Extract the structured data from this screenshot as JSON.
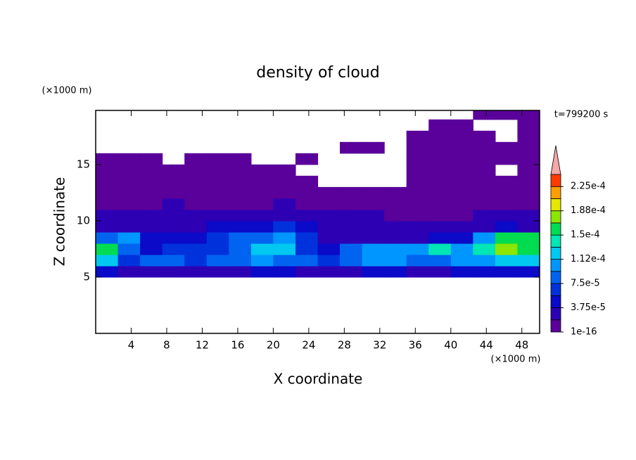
{
  "chart_data": {
    "type": "contour",
    "title": "density of cloud",
    "annotation": "t=799200 s",
    "xlabel": "X coordinate",
    "ylabel": "Z coordinate",
    "x_unit": "(×1000 m)",
    "y_unit": "(×1000 m)",
    "xlim": [
      0,
      50
    ],
    "ylim": [
      0,
      19.8
    ],
    "xticks": [
      4,
      8,
      12,
      16,
      20,
      24,
      28,
      32,
      36,
      40,
      44,
      48
    ],
    "yticks": [
      5,
      10,
      15
    ],
    "x": [
      1.25,
      3.75,
      6.25,
      8.75,
      11.25,
      13.75,
      16.25,
      18.75,
      21.25,
      23.75,
      26.25,
      28.75,
      31.25,
      33.75,
      36.25,
      38.75,
      41.25,
      43.75,
      46.25,
      48.75
    ],
    "y": [
      0.5,
      1.5,
      2.5,
      3.5,
      4.5,
      5.5,
      6.5,
      7.5,
      8.5,
      9.5,
      10.5,
      11.5,
      12.5,
      13.5,
      14.5,
      15.5,
      16.5,
      17.5,
      18.5,
      19.5
    ],
    "z": [
      [
        null,
        null,
        null,
        null,
        null,
        null,
        null,
        null,
        null,
        null,
        null,
        null,
        null,
        null,
        null,
        null,
        null,
        null,
        null,
        null
      ],
      [
        null,
        null,
        null,
        null,
        null,
        null,
        null,
        null,
        null,
        null,
        null,
        null,
        null,
        null,
        null,
        null,
        null,
        null,
        null,
        null
      ],
      [
        null,
        null,
        null,
        null,
        null,
        null,
        null,
        null,
        null,
        null,
        null,
        null,
        null,
        null,
        null,
        null,
        null,
        null,
        null,
        null
      ],
      [
        null,
        null,
        null,
        null,
        null,
        null,
        null,
        null,
        null,
        null,
        null,
        null,
        null,
        null,
        null,
        null,
        null,
        null,
        null,
        null
      ],
      [
        null,
        null,
        null,
        null,
        null,
        null,
        null,
        null,
        null,
        null,
        null,
        null,
        null,
        null,
        null,
        null,
        null,
        null,
        null,
        null
      ],
      [
        4e-05,
        3e-05,
        3e-05,
        3e-05,
        3e-05,
        3e-05,
        3e-05,
        4e-05,
        4e-05,
        3e-05,
        3e-05,
        3e-05,
        4e-05,
        4e-05,
        3e-05,
        3e-05,
        4e-05,
        4e-05,
        4e-05,
        4e-05
      ],
      [
        0.00013,
        7e-05,
        8e-05,
        8e-05,
        7e-05,
        8e-05,
        9e-05,
        0.0001,
        9e-05,
        8e-05,
        6e-05,
        9e-05,
        0.0001,
        0.0001,
        9e-05,
        9e-05,
        0.0001,
        0.00011,
        0.00012,
        0.00012
      ],
      [
        0.00015,
        8e-05,
        5e-05,
        6e-05,
        6e-05,
        7e-05,
        9e-05,
        0.00013,
        0.00012,
        6e-05,
        4e-05,
        8e-05,
        0.0001,
        0.00011,
        0.0001,
        0.00014,
        0.00011,
        0.00014,
        0.00017,
        0.00016
      ],
      [
        9e-05,
        0.0001,
        4e-05,
        4e-05,
        5e-05,
        6e-05,
        8e-05,
        9e-05,
        0.0001,
        7e-05,
        3e-05,
        3e-05,
        3e-05,
        3e-05,
        3e-05,
        4e-05,
        4e-05,
        0.00011,
        0.00016,
        0.00015
      ],
      [
        3e-05,
        3e-05,
        3e-05,
        3e-05,
        3e-05,
        4e-05,
        4e-05,
        5e-05,
        7e-05,
        4e-05,
        3e-05,
        3e-05,
        3e-05,
        2e-05,
        2e-05,
        2e-05,
        2e-05,
        3e-05,
        4e-05,
        3e-05
      ],
      [
        2e-05,
        2e-05,
        2e-05,
        2e-05,
        2e-05,
        2e-05,
        2e-05,
        2e-05,
        2e-05,
        2e-05,
        2e-05,
        2e-05,
        2e-05,
        1e-05,
        1e-05,
        1e-05,
        1e-05,
        2e-05,
        2e-05,
        2e-05
      ],
      [
        1e-05,
        1e-05,
        1e-05,
        2e-05,
        1e-05,
        1e-05,
        1e-05,
        1e-05,
        2e-05,
        1e-05,
        1e-05,
        1e-05,
        1e-05,
        1e-05,
        1e-05,
        1e-05,
        1e-05,
        1e-05,
        1e-05,
        1e-05
      ],
      [
        5e-06,
        5e-06,
        1e-05,
        5e-06,
        5e-06,
        5e-06,
        1e-05,
        5e-06,
        5e-06,
        5e-06,
        5e-06,
        5e-06,
        5e-06,
        5e-06,
        5e-06,
        5e-06,
        5e-06,
        5e-06,
        5e-06,
        5e-06
      ],
      [
        5e-06,
        5e-06,
        5e-06,
        5e-06,
        5e-06,
        5e-06,
        5e-06,
        5e-06,
        5e-06,
        5e-06,
        null,
        null,
        null,
        null,
        5e-06,
        5e-06,
        5e-06,
        5e-06,
        5e-06,
        5e-06
      ],
      [
        5e-06,
        5e-06,
        5e-06,
        5e-06,
        5e-06,
        5e-06,
        5e-06,
        5e-06,
        5e-06,
        null,
        null,
        null,
        null,
        null,
        5e-06,
        5e-06,
        5e-06,
        5e-06,
        null,
        5e-06
      ],
      [
        5e-06,
        5e-06,
        5e-06,
        null,
        5e-06,
        5e-06,
        5e-06,
        null,
        null,
        5e-06,
        null,
        null,
        null,
        null,
        5e-06,
        5e-06,
        5e-06,
        5e-06,
        5e-06,
        5e-06
      ],
      [
        null,
        null,
        null,
        null,
        null,
        null,
        null,
        null,
        null,
        null,
        null,
        5e-06,
        5e-06,
        null,
        5e-06,
        5e-06,
        5e-06,
        5e-06,
        5e-06,
        5e-06
      ],
      [
        null,
        null,
        null,
        null,
        null,
        null,
        null,
        null,
        null,
        null,
        null,
        null,
        null,
        null,
        5e-06,
        5e-06,
        5e-06,
        5e-06,
        null,
        5e-06
      ],
      [
        null,
        null,
        null,
        null,
        null,
        null,
        null,
        null,
        null,
        null,
        null,
        null,
        null,
        null,
        null,
        5e-06,
        5e-06,
        null,
        null,
        5e-06
      ],
      [
        null,
        null,
        null,
        null,
        null,
        null,
        null,
        null,
        null,
        null,
        null,
        null,
        null,
        null,
        null,
        null,
        null,
        5e-06,
        5e-06,
        5e-06
      ]
    ],
    "levels": [
      1e-16,
      1.875e-05,
      3.75e-05,
      5.625e-05,
      7.5e-05,
      9.375e-05,
      0.0001125,
      0.00013125,
      0.00015,
      0.00016875,
      0.0001875,
      0.00020625,
      0.000225,
      0.00024375
    ],
    "colors": [
      "#5a009b",
      "#2d00b4",
      "#0a0ac8",
      "#0032dc",
      "#0064f0",
      "#0096ff",
      "#00c8f0",
      "#00e6b4",
      "#00dc50",
      "#8ce600",
      "#e6e600",
      "#ffa000",
      "#ff3c00"
    ],
    "over_color": "#f4a8a8",
    "colorbar_ticks": [
      {
        "value": 1e-16,
        "label": "1e-16"
      },
      {
        "value": 3.75e-05,
        "label": "3.75e-5"
      },
      {
        "value": 7.5e-05,
        "label": "7.5e-5"
      },
      {
        "value": 0.0001125,
        "label": "1.12e-4"
      },
      {
        "value": 0.00015,
        "label": "1.5e-4"
      },
      {
        "value": 0.0001875,
        "label": "1.88e-4"
      },
      {
        "value": 0.000225,
        "label": "2.25e-4"
      }
    ]
  }
}
